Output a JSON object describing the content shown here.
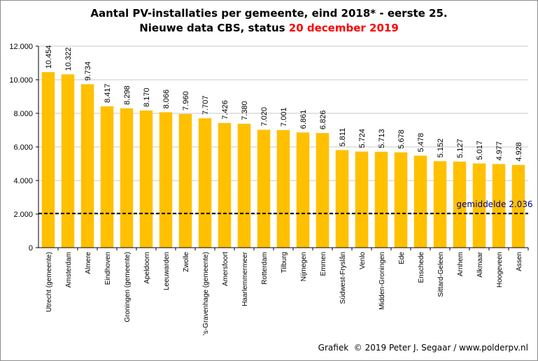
{
  "title": {
    "line1": "Aantal PV-installaties  per gemeente, eind 2018* - eerste 25.",
    "line2_prefix": "Nieuwe data CBS, status ",
    "line2_highlight": "20 december 2019"
  },
  "footer": "Grafiek  © 2019 Peter J. Segaar / www.polderpv.nl",
  "colors": {
    "bar": "#ffc000",
    "average_line": "#000000",
    "average_label": "#00008b",
    "title_highlight": "#ff0000",
    "gridline": "#c8c8c8"
  },
  "chart_data": {
    "type": "bar",
    "categories": [
      "Utrecht (gemeente)",
      "Amsterdam",
      "Almere",
      "Eindhoven",
      "Groningen (gemeente)",
      "Apeldoorn",
      "Leeuwarden",
      "Zwolle",
      "'s-Gravenhage (gemeente)",
      "Amersfoort",
      "Haarlemmermeer",
      "Rotterdam",
      "Tilburg",
      "Nijmegen",
      "Emmen",
      "Súdwest-Fryslân",
      "Venlo",
      "Midden-Groningen",
      "Ede",
      "Enschede",
      "Sittard-Geleen",
      "Arnhem",
      "Alkmaar",
      "Hoogeveen",
      "Assen"
    ],
    "values": [
      10454,
      10322,
      9734,
      8417,
      8298,
      8170,
      8066,
      7960,
      7707,
      7426,
      7380,
      7020,
      7001,
      6861,
      6826,
      5811,
      5724,
      5713,
      5678,
      5478,
      5152,
      5127,
      5017,
      4977,
      4928
    ],
    "value_labels": [
      "10.454",
      "10.322",
      "9.734",
      "8.417",
      "8.298",
      "8.170",
      "8.066",
      "7.960",
      "7.707",
      "7.426",
      "7.380",
      "7.020",
      "7.001",
      "6.861",
      "6.826",
      "5.811",
      "5.724",
      "5.713",
      "5.678",
      "5.478",
      "5.152",
      "5.127",
      "5.017",
      "4.977",
      "4.928"
    ],
    "y_ticks": [
      0,
      2000,
      4000,
      6000,
      8000,
      10000,
      12000
    ],
    "y_tick_labels": [
      "0",
      "2.000",
      "4.000",
      "6.000",
      "8.000",
      "10.000",
      "12.000"
    ],
    "ylim": [
      0,
      12000
    ],
    "grid": true,
    "average": {
      "value": 2036,
      "label": "gemiddelde  2.036"
    }
  }
}
